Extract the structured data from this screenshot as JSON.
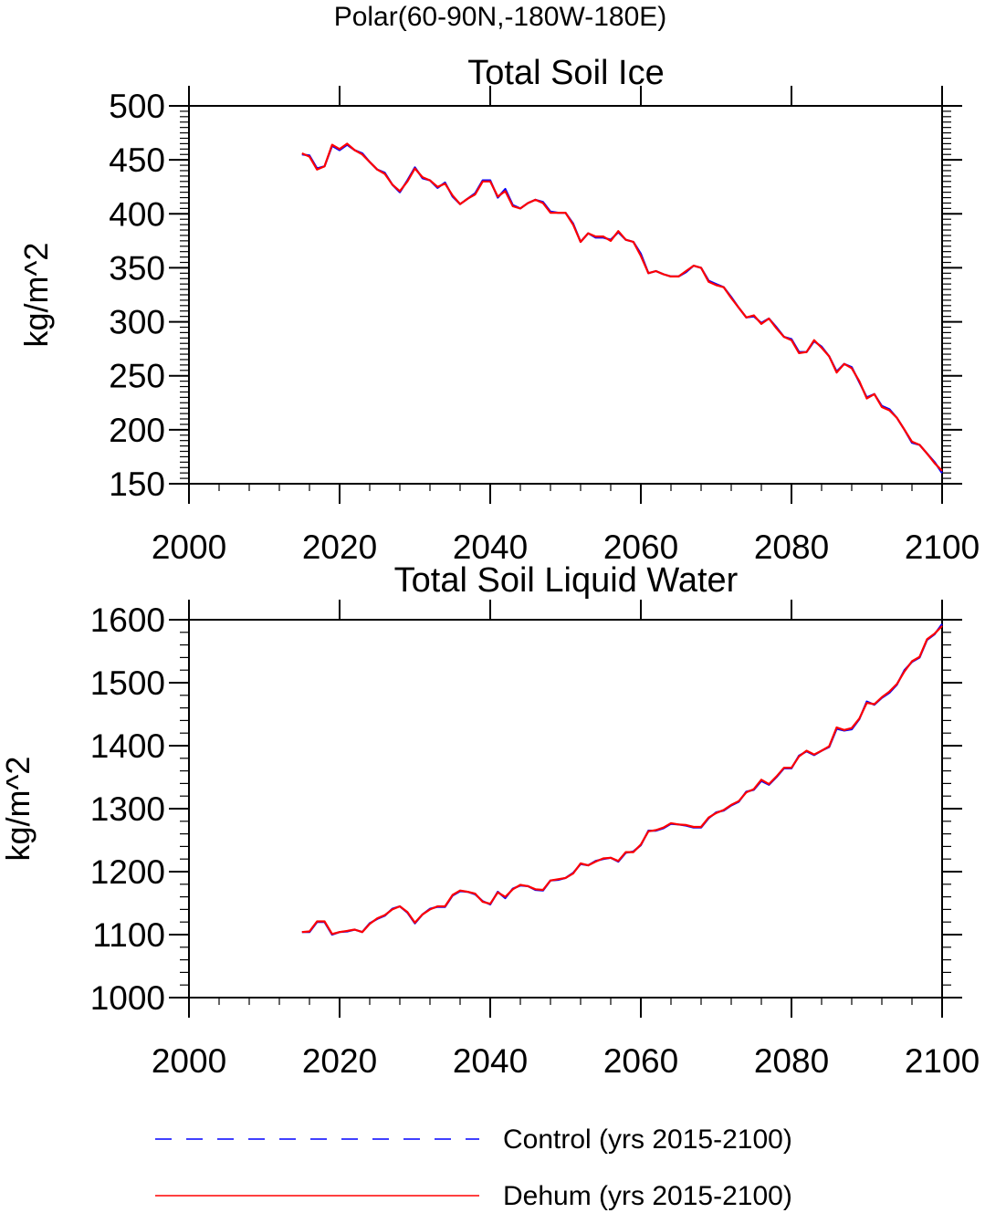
{
  "figure_title": "Polar(60-90N,-180W-180E)",
  "legend": [
    {
      "label": "Control (yrs 2015-2100)",
      "color": "#0000ff",
      "dash": "dashed"
    },
    {
      "label": "Dehum (yrs 2015-2100)",
      "color": "#ff0000",
      "dash": "solid"
    }
  ],
  "chart_data": [
    {
      "type": "line",
      "title": "Total Soil Ice",
      "xlabel": "",
      "ylabel": "kg/m^2",
      "xlim": [
        2000,
        2100
      ],
      "ylim": [
        150,
        500
      ],
      "xticks": [
        2000,
        2020,
        2040,
        2060,
        2080,
        2100
      ],
      "yticks": [
        150,
        200,
        250,
        300,
        350,
        400,
        450,
        500
      ],
      "x_start": 2015,
      "series": [
        {
          "name": "Control (yrs 2015-2100)",
          "color": "#0000ff",
          "style": "dashed",
          "values": [
            455,
            454,
            442,
            444,
            463,
            459,
            464,
            459,
            456,
            448,
            441,
            438,
            427,
            420,
            431,
            443,
            433,
            431,
            424,
            429,
            416,
            409,
            414,
            419,
            431,
            431,
            415,
            423,
            408,
            405,
            410,
            413,
            411,
            402,
            401,
            401,
            391,
            374,
            382,
            378,
            378,
            376,
            383,
            376,
            374,
            363,
            345,
            347,
            344,
            342,
            342,
            346,
            352,
            350,
            338,
            335,
            332,
            323,
            313,
            304,
            305,
            299,
            303,
            295,
            286,
            284,
            272,
            272,
            282,
            277,
            268,
            254,
            261,
            258,
            244,
            230,
            233,
            222,
            219,
            211,
            200,
            188,
            186,
            178,
            170,
            160
          ]
        },
        {
          "name": "Dehum (yrs 2015-2100)",
          "color": "#ff0000",
          "style": "solid",
          "values": [
            456,
            453,
            441,
            444,
            464,
            460,
            465,
            459,
            455,
            448,
            441,
            437,
            427,
            421,
            430,
            442,
            434,
            431,
            425,
            428,
            417,
            409,
            414,
            418,
            430,
            430,
            416,
            421,
            407,
            405,
            410,
            413,
            410,
            401,
            401,
            401,
            390,
            374,
            382,
            379,
            379,
            375,
            384,
            376,
            374,
            361,
            345,
            347,
            344,
            342,
            342,
            347,
            352,
            350,
            337,
            334,
            332,
            322,
            313,
            304,
            306,
            298,
            303,
            294,
            286,
            283,
            271,
            272,
            283,
            276,
            268,
            253,
            261,
            257,
            245,
            229,
            233,
            221,
            218,
            211,
            200,
            189,
            186,
            178,
            169,
            162
          ]
        }
      ]
    },
    {
      "type": "line",
      "title": "Total Soil Liquid Water",
      "xlabel": "",
      "ylabel": "kg/m^2",
      "xlim": [
        2000,
        2100
      ],
      "ylim": [
        1000,
        1600
      ],
      "xticks": [
        2000,
        2020,
        2040,
        2060,
        2080,
        2100
      ],
      "yticks": [
        1000,
        1100,
        1200,
        1300,
        1400,
        1500,
        1600
      ],
      "x_start": 2015,
      "series": [
        {
          "name": "Control (yrs 2015-2100)",
          "color": "#0000ff",
          "style": "dashed",
          "values": [
            1104,
            1104,
            1120,
            1120,
            1100,
            1104,
            1105,
            1108,
            1104,
            1118,
            1125,
            1130,
            1141,
            1145,
            1135,
            1118,
            1132,
            1141,
            1144,
            1144,
            1162,
            1169,
            1168,
            1164,
            1153,
            1148,
            1168,
            1158,
            1173,
            1178,
            1177,
            1171,
            1170,
            1186,
            1187,
            1190,
            1198,
            1212,
            1210,
            1217,
            1220,
            1222,
            1216,
            1230,
            1232,
            1242,
            1265,
            1265,
            1269,
            1276,
            1275,
            1273,
            1270,
            1270,
            1285,
            1294,
            1297,
            1305,
            1311,
            1327,
            1330,
            1344,
            1338,
            1350,
            1364,
            1364,
            1384,
            1391,
            1385,
            1392,
            1398,
            1427,
            1424,
            1426,
            1442,
            1470,
            1465,
            1476,
            1484,
            1497,
            1520,
            1533,
            1540,
            1568,
            1577,
            1593
          ]
        },
        {
          "name": "Dehum (yrs 2015-2100)",
          "color": "#ff0000",
          "style": "solid",
          "values": [
            1104,
            1105,
            1121,
            1121,
            1101,
            1104,
            1106,
            1108,
            1104,
            1117,
            1126,
            1131,
            1140,
            1145,
            1136,
            1119,
            1132,
            1140,
            1145,
            1145,
            1163,
            1170,
            1168,
            1165,
            1152,
            1149,
            1167,
            1160,
            1172,
            1179,
            1177,
            1172,
            1171,
            1186,
            1188,
            1190,
            1197,
            1213,
            1210,
            1216,
            1221,
            1222,
            1217,
            1231,
            1231,
            1243,
            1264,
            1266,
            1270,
            1277,
            1275,
            1274,
            1271,
            1271,
            1286,
            1293,
            1298,
            1306,
            1312,
            1326,
            1331,
            1346,
            1339,
            1351,
            1365,
            1365,
            1383,
            1392,
            1386,
            1392,
            1399,
            1429,
            1425,
            1428,
            1443,
            1468,
            1466,
            1477,
            1486,
            1498,
            1518,
            1534,
            1541,
            1569,
            1578,
            1590
          ]
        }
      ]
    }
  ]
}
